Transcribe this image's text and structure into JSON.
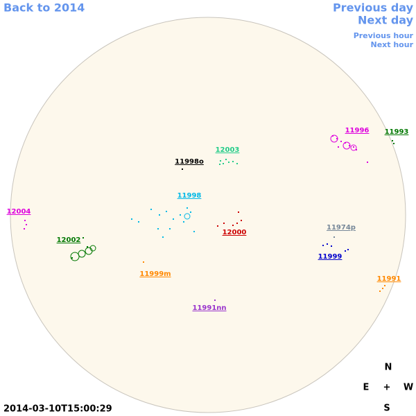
{
  "nav": {
    "back": "Back to 2014",
    "previous_day": "Previous day",
    "next_day": "Next day",
    "previous_hour": "Previous hour",
    "next_hour": "Next hour"
  },
  "regions": [
    {
      "label": "11998o",
      "color": "#000000"
    },
    {
      "label": "12003",
      "color": "#22cc88"
    },
    {
      "label": "11996",
      "color": "#dd00dd"
    },
    {
      "label": "11993",
      "color": "#007700"
    },
    {
      "label": "12004",
      "color": "#dd00dd"
    },
    {
      "label": "11998",
      "color": "#00b8e6"
    },
    {
      "label": "12000",
      "color": "#cc0000"
    },
    {
      "label": "11974p",
      "color": "#778899"
    },
    {
      "label": "12002",
      "color": "#007700"
    },
    {
      "label": "11999",
      "color": "#0000cc"
    },
    {
      "label": "11999m",
      "color": "#ff8800"
    },
    {
      "label": "11991",
      "color": "#ff8800"
    },
    {
      "label": "11991nn",
      "color": "#9933cc"
    }
  ],
  "compass": {
    "north": "N",
    "east": "E",
    "center": "+",
    "west": "W",
    "south": "S"
  },
  "timestamp": "2014-03-10T15:00:29"
}
